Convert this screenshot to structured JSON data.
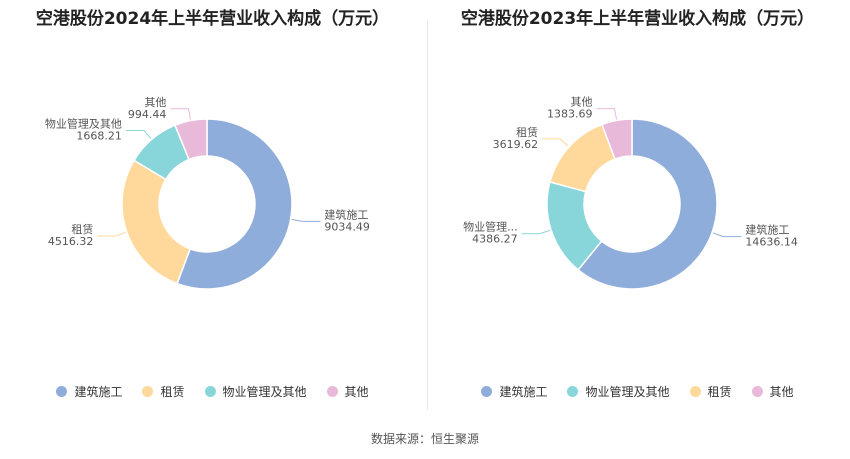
{
  "chart_data": [
    {
      "type": "pie",
      "title": "空港股份2024年上半年营业收入构成（万元）",
      "series": [
        {
          "label": "建筑施工",
          "display_label": "建筑施工",
          "value": 9034.49,
          "value_text": "9034.49",
          "color": "#8eaddb"
        },
        {
          "label": "租赁",
          "display_label": "租赁",
          "value": 4516.32,
          "value_text": "4516.32",
          "color": "#fed99b"
        },
        {
          "label": "物业管理及其他",
          "display_label": "物业管理及其他",
          "value": 1668.21,
          "value_text": "1668.21",
          "color": "#88d6da"
        },
        {
          "label": "其他",
          "display_label": "其他",
          "value": 994.44,
          "value_text": "994.44",
          "color": "#e9b9da"
        }
      ],
      "legend": [
        "建筑施工",
        "租赁",
        "物业管理及其他",
        "其他"
      ],
      "legend_position": "bottom"
    },
    {
      "type": "pie",
      "title": "空港股份2023年上半年营业收入构成（万元）",
      "series": [
        {
          "label": "建筑施工",
          "display_label": "建筑施工",
          "value": 14636.14,
          "value_text": "14636.14",
          "color": "#8eaddb"
        },
        {
          "label": "物业管理及其他",
          "display_label": "物业管理...",
          "value": 4386.27,
          "value_text": "4386.27",
          "color": "#88d6da"
        },
        {
          "label": "租赁",
          "display_label": "租赁",
          "value": 3619.62,
          "value_text": "3619.62",
          "color": "#fed99b"
        },
        {
          "label": "其他",
          "display_label": "其他",
          "value": 1383.69,
          "value_text": "1383.69",
          "color": "#e9b9da"
        }
      ],
      "legend": [
        "建筑施工",
        "物业管理及其他",
        "租赁",
        "其他"
      ],
      "legend_position": "bottom"
    }
  ],
  "footer": {
    "source": "数据来源：恒生聚源"
  }
}
